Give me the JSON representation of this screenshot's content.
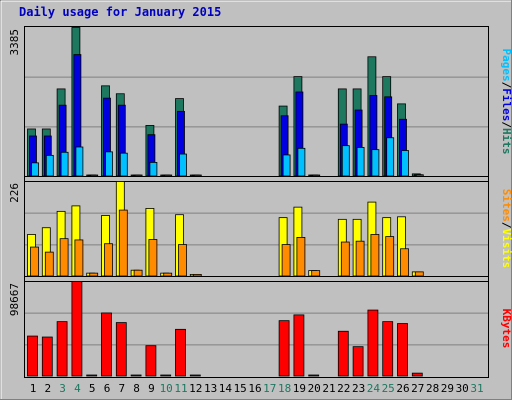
{
  "title": "Daily usage for January 2015",
  "colors": {
    "background": "#c0c0c0",
    "hits": "#1e7860",
    "files": "#0000e0",
    "pages": "#00c0ff",
    "visits": "#ffff00",
    "sites": "#ff8c00",
    "kbytes": "#ff0000",
    "weekend_label": "#1e7860"
  },
  "chart_data": [
    {
      "type": "bar",
      "panel": "hits-files-pages",
      "max_label": "3385",
      "ylim": [
        0,
        3385
      ],
      "categories": [
        "1",
        "2",
        "3",
        "4",
        "5",
        "6",
        "7",
        "8",
        "9",
        "10",
        "11",
        "12",
        "13",
        "14",
        "15",
        "16",
        "17",
        "18",
        "19",
        "20",
        "21",
        "22",
        "23",
        "24",
        "25",
        "26",
        "27",
        "28",
        "29",
        "30",
        "31"
      ],
      "legend": [
        "Pages",
        "/",
        "Files",
        "/",
        "Hits"
      ],
      "series": [
        {
          "name": "Hits",
          "values": [
            1080,
            1080,
            1990,
            3385,
            30,
            2060,
            1880,
            30,
            1160,
            30,
            1770,
            30,
            0,
            0,
            0,
            0,
            0,
            1600,
            2270,
            30,
            0,
            1990,
            1990,
            2720,
            2270,
            1650,
            60,
            0,
            0,
            0,
            0
          ]
        },
        {
          "name": "Files",
          "values": [
            920,
            920,
            1620,
            2770,
            30,
            1780,
            1620,
            30,
            950,
            30,
            1480,
            30,
            0,
            0,
            0,
            0,
            0,
            1380,
            1920,
            30,
            0,
            1190,
            1510,
            1840,
            1810,
            1300,
            40,
            0,
            0,
            0,
            0
          ]
        },
        {
          "name": "Pages",
          "values": [
            310,
            480,
            550,
            670,
            30,
            560,
            530,
            30,
            320,
            30,
            510,
            30,
            0,
            0,
            0,
            0,
            0,
            490,
            640,
            30,
            0,
            700,
            660,
            610,
            880,
            590,
            40,
            0,
            0,
            0,
            0
          ]
        }
      ]
    },
    {
      "type": "bar",
      "panel": "visits-sites",
      "max_label": "226",
      "ylim": [
        0,
        226
      ],
      "categories": [
        "1",
        "2",
        "3",
        "4",
        "5",
        "6",
        "7",
        "8",
        "9",
        "10",
        "11",
        "12",
        "13",
        "14",
        "15",
        "16",
        "17",
        "18",
        "19",
        "20",
        "21",
        "22",
        "23",
        "24",
        "25",
        "26",
        "27",
        "28",
        "29",
        "30",
        "31"
      ],
      "legend": [
        "Sites",
        "/",
        "Visits"
      ],
      "series": [
        {
          "name": "Visits",
          "values": [
            100,
            116,
            155,
            168,
            8,
            145,
            226,
            15,
            162,
            8,
            147,
            5,
            0,
            0,
            0,
            0,
            0,
            140,
            165,
            14,
            0,
            136,
            136,
            177,
            140,
            142,
            11,
            0,
            0,
            0,
            0
          ]
        },
        {
          "name": "Sites",
          "values": [
            70,
            58,
            90,
            87,
            8,
            78,
            158,
            15,
            88,
            8,
            76,
            5,
            0,
            0,
            0,
            0,
            0,
            76,
            93,
            14,
            0,
            82,
            84,
            100,
            95,
            66,
            11,
            0,
            0,
            0,
            0
          ]
        }
      ]
    },
    {
      "type": "bar",
      "panel": "kbytes",
      "max_label": "98667",
      "ylim": [
        0,
        98667
      ],
      "categories": [
        "1",
        "2",
        "3",
        "4",
        "5",
        "6",
        "7",
        "8",
        "9",
        "10",
        "11",
        "12",
        "13",
        "14",
        "15",
        "16",
        "17",
        "18",
        "19",
        "20",
        "21",
        "22",
        "23",
        "24",
        "25",
        "26",
        "27",
        "28",
        "29",
        "30",
        "31"
      ],
      "legend": [
        "KBytes"
      ],
      "series": [
        {
          "name": "KBytes",
          "values": [
            42000,
            41000,
            57000,
            98667,
            1000,
            66000,
            56000,
            1000,
            32000,
            1000,
            49000,
            1000,
            0,
            0,
            0,
            0,
            0,
            58000,
            64000,
            1000,
            0,
            47000,
            31000,
            69000,
            57000,
            55000,
            3500,
            0,
            0,
            0,
            0
          ]
        }
      ]
    }
  ],
  "weekend_days": [
    "3",
    "4",
    "10",
    "11",
    "17",
    "18",
    "24",
    "25",
    "31"
  ]
}
